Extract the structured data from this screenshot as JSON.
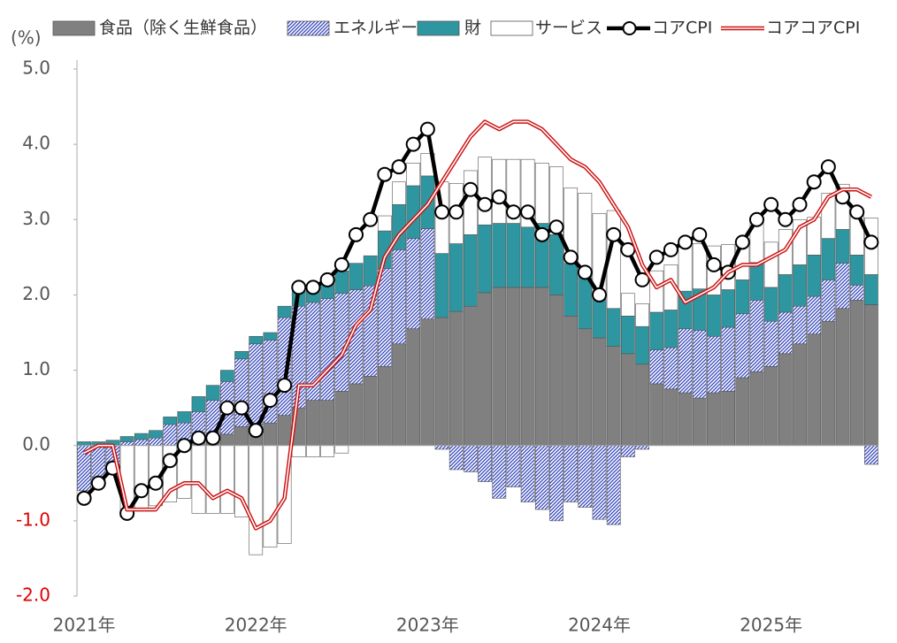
{
  "chart_data": {
    "type": "bar",
    "y_label": "(%)",
    "categories": [
      "2021年",
      null,
      null,
      null,
      null,
      null,
      null,
      null,
      null,
      null,
      null,
      null,
      "2022年",
      null,
      null,
      null,
      null,
      null,
      null,
      null,
      null,
      null,
      null,
      null,
      "2023年",
      null,
      null,
      null,
      null,
      null,
      null,
      null,
      null,
      null,
      null,
      null,
      "2024年",
      null,
      null,
      null,
      null,
      null,
      null,
      null,
      null,
      null,
      null,
      null,
      "2025年",
      null,
      null,
      null,
      null,
      null,
      null,
      null
    ],
    "ylim": [
      -2,
      5
    ],
    "yticks": [
      {
        "value": -2,
        "label": "-2.0"
      },
      {
        "value": -1,
        "label": "-1.0"
      },
      {
        "value": 0,
        "label": "0.0"
      },
      {
        "value": 1,
        "label": "1.0"
      },
      {
        "value": 2,
        "label": "2.0"
      },
      {
        "value": 3,
        "label": "3.0"
      },
      {
        "value": 4,
        "label": "4.0"
      },
      {
        "value": 5,
        "label": "5.0"
      }
    ],
    "negative_tick_color": "#e00000",
    "legend": "top",
    "series": [
      {
        "name": "食品（除く生鮮食品）",
        "mark": "bar",
        "color": "#808080",
        "values": [
          0,
          0,
          0,
          0,
          0,
          0,
          0,
          0,
          0.05,
          0.1,
          0.15,
          0.25,
          0.25,
          0.3,
          0.4,
          0.5,
          0.6,
          0.6,
          0.72,
          0.82,
          0.92,
          1.05,
          1.35,
          1.55,
          1.68,
          1.7,
          1.78,
          1.85,
          2.03,
          2.1,
          2.1,
          2.1,
          2.1,
          2.0,
          1.72,
          1.55,
          1.43,
          1.32,
          1.22,
          1.08,
          0.82,
          0.75,
          0.7,
          0.63,
          0.7,
          0.72,
          0.9,
          0.98,
          1.05,
          1.22,
          1.35,
          1.48,
          1.65,
          1.82,
          1.93,
          1.87
        ]
      },
      {
        "name": "エネルギー",
        "mark": "bar",
        "color": "#3344bb",
        "pattern": "hatch",
        "values": [
          -0.6,
          -0.5,
          -0.35,
          0.05,
          0.08,
          0.1,
          0.28,
          0.3,
          0.4,
          0.5,
          0.7,
          0.9,
          1.1,
          1.1,
          1.3,
          1.35,
          1.3,
          1.35,
          1.3,
          1.25,
          1.2,
          1.3,
          1.25,
          1.2,
          1.2,
          -0.05,
          -0.32,
          -0.35,
          -0.48,
          -0.7,
          -0.55,
          -0.75,
          -0.85,
          -1.0,
          -0.75,
          -0.82,
          -0.98,
          -1.05,
          -0.15,
          -0.05,
          0.45,
          0.55,
          0.85,
          0.9,
          0.75,
          0.85,
          0.85,
          0.95,
          0.6,
          0.55,
          0.5,
          0.5,
          0.55,
          0.6,
          0.2,
          -0.25
        ]
      },
      {
        "name": "財",
        "mark": "bar",
        "color": "#2e96a0",
        "values": [
          0.05,
          0.05,
          0.07,
          0.07,
          0.08,
          0.1,
          0.1,
          0.15,
          0.2,
          0.2,
          0.15,
          0.1,
          0.1,
          0.1,
          0.15,
          0.2,
          0.2,
          0.25,
          0.3,
          0.35,
          0.4,
          0.5,
          0.6,
          0.7,
          0.7,
          0.85,
          0.9,
          0.95,
          0.9,
          0.85,
          0.85,
          0.8,
          0.85,
          0.8,
          0.7,
          0.7,
          0.55,
          0.5,
          0.5,
          0.5,
          0.5,
          0.5,
          0.5,
          0.55,
          0.55,
          0.5,
          0.45,
          0.5,
          0.45,
          0.5,
          0.55,
          0.55,
          0.55,
          0.45,
          0.4,
          0.4
        ]
      },
      {
        "name": "サービス",
        "mark": "bar",
        "color": "#ffffff",
        "values": [
          0,
          0,
          0,
          -0.95,
          -0.85,
          -0.8,
          -0.75,
          -0.7,
          -0.9,
          -0.9,
          -0.9,
          -0.95,
          -1.45,
          -1.35,
          -1.3,
          -0.15,
          -0.15,
          -0.15,
          -0.1,
          0,
          0,
          0.2,
          0.3,
          0.3,
          0.3,
          0.95,
          0.8,
          0.85,
          0.9,
          0.85,
          0.85,
          0.9,
          0.8,
          0.9,
          1.0,
          1.1,
          1.1,
          1.3,
          0.3,
          0.3,
          0.55,
          0.6,
          0.6,
          0.6,
          0.65,
          0.6,
          0.5,
          0.6,
          0.6,
          0.6,
          0.6,
          0.5,
          0.6,
          0.6,
          0.6,
          0.75
        ]
      },
      {
        "name": "コアCPI",
        "mark": "line",
        "color": "#000000",
        "marker": "circle",
        "values": [
          -0.7,
          -0.5,
          -0.3,
          -0.9,
          -0.6,
          -0.5,
          -0.2,
          0,
          0.1,
          0.1,
          0.5,
          0.5,
          0.2,
          0.6,
          0.8,
          2.1,
          2.1,
          2.2,
          2.4,
          2.8,
          3.0,
          3.6,
          3.7,
          4.0,
          4.2,
          3.1,
          3.1,
          3.4,
          3.2,
          3.3,
          3.1,
          3.1,
          2.8,
          2.9,
          2.5,
          2.3,
          2.0,
          2.8,
          2.6,
          2.2,
          2.5,
          2.6,
          2.7,
          2.8,
          2.4,
          2.3,
          2.7,
          3.0,
          3.2,
          3.0,
          3.2,
          3.5,
          3.7,
          3.3,
          3.1,
          2.7
        ]
      },
      {
        "name": "コアコアCPI",
        "mark": "line",
        "color": "#cc1111",
        "style": "double",
        "values": [
          -0.1,
          0,
          0,
          -0.85,
          -0.85,
          -0.85,
          -0.6,
          -0.5,
          -0.5,
          -0.7,
          -0.6,
          -0.7,
          -1.1,
          -1.0,
          -0.7,
          0.8,
          0.8,
          1.0,
          1.2,
          1.6,
          1.8,
          2.5,
          2.8,
          3.0,
          3.2,
          3.5,
          3.8,
          4.1,
          4.3,
          4.2,
          4.3,
          4.3,
          4.2,
          4.0,
          3.8,
          3.7,
          3.5,
          3.2,
          2.9,
          2.4,
          2.1,
          2.2,
          1.9,
          2.0,
          2.1,
          2.3,
          2.4,
          2.4,
          2.5,
          2.6,
          2.9,
          3.0,
          3.3,
          3.4,
          3.4,
          3.3
        ]
      }
    ]
  }
}
